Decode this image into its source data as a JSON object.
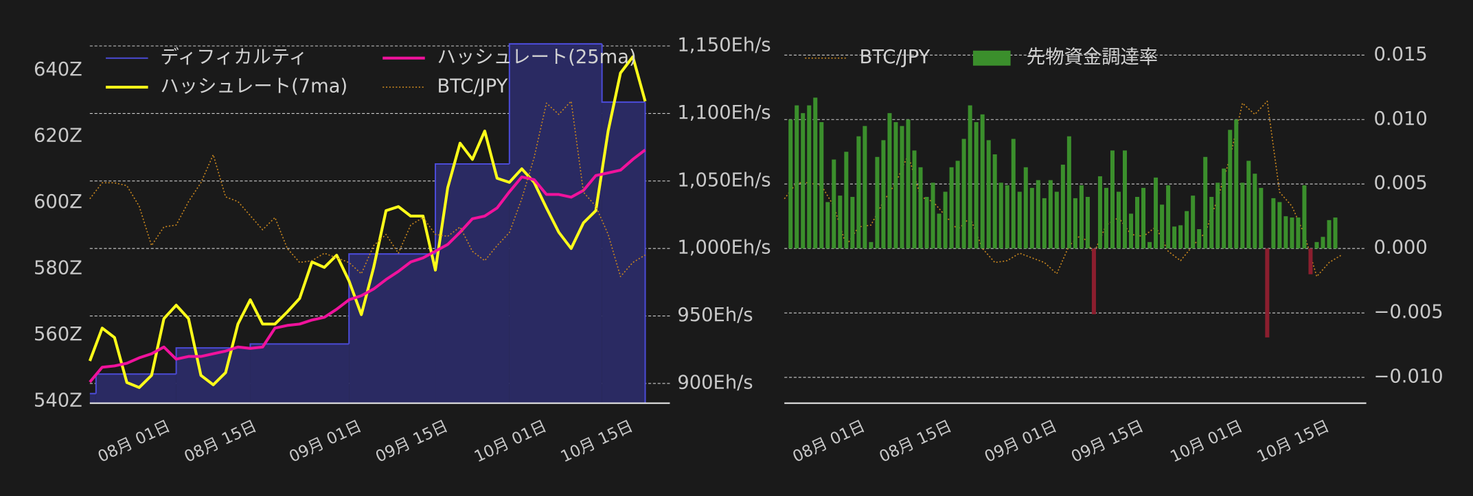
{
  "chart_data": [
    {
      "type": "line",
      "x": [
        "07-20",
        "07-22",
        "07-24",
        "07-26",
        "07-28",
        "07-30",
        "08-01",
        "08-03",
        "08-05",
        "08-07",
        "08-09",
        "08-11",
        "08-13",
        "08-15",
        "08-17",
        "08-19",
        "08-21",
        "08-23",
        "08-25",
        "08-27",
        "08-29",
        "08-31",
        "09-02",
        "09-04",
        "09-06",
        "09-08",
        "09-10",
        "09-12",
        "09-14",
        "09-16",
        "09-18",
        "09-20",
        "09-22",
        "09-24",
        "09-26",
        "09-28",
        "09-30",
        "10-02",
        "10-04",
        "10-06",
        "10-08",
        "10-10",
        "10-12",
        "10-14",
        "10-16",
        "10-18"
      ],
      "xlim": [
        "07-20",
        "10-22"
      ],
      "xticks": [
        {
          "value": "08-01",
          "label": "08月 01日"
        },
        {
          "value": "08-15",
          "label": "08月 15日"
        },
        {
          "value": "09-01",
          "label": "09月 01日"
        },
        {
          "value": "09-15",
          "label": "09月 15日"
        },
        {
          "value": "10-01",
          "label": "10月 01日"
        },
        {
          "value": "10-15",
          "label": "10月 15日"
        }
      ],
      "ylim": [
        539.4,
        648.5
      ],
      "yticks": [
        {
          "value": 540,
          "label": "540Z"
        },
        {
          "value": 560,
          "label": "560Z"
        },
        {
          "value": 580,
          "label": "580Z"
        },
        {
          "value": 600,
          "label": "600Z"
        },
        {
          "value": 620,
          "label": "620Z"
        },
        {
          "value": 640,
          "label": "640Z"
        }
      ],
      "ytick_side": "left",
      "y2lim": [
        885.4,
        1152.8
      ],
      "y2ticks": [
        {
          "value": 900,
          "label": "900Eh/s"
        },
        {
          "value": 950,
          "label": "950Eh/s"
        },
        {
          "value": 1000,
          "label": "1,000Eh/s"
        },
        {
          "value": 1050,
          "label": "1,050Eh/s"
        },
        {
          "value": 1100,
          "label": "1,100Eh/s"
        },
        {
          "value": 1150,
          "label": "1,150Eh/s"
        }
      ],
      "y2tick_side": "right",
      "y3lim": [
        7000000,
        11000000
      ],
      "grid": "y2",
      "legend": "upper left",
      "legend_columns": 2,
      "series": [
        {
          "name": "ディフィカルティ",
          "type": "step_area",
          "color": "#4b4bd6",
          "fill": "#2a2a62",
          "x": [
            "07-20",
            "07-21",
            "08-03",
            "08-15",
            "08-31",
            "09-14",
            "09-26",
            "10-11",
            "10-18"
          ],
          "values": [
            542.3,
            548.2,
            556.1,
            557.3,
            584.5,
            611.7,
            648.0,
            630.4,
            630.4
          ]
        },
        {
          "name": "ハッシュレート(7ma)",
          "type": "line",
          "axis": "y2",
          "color": "#ffff1a",
          "width": 3,
          "values": [
            916.7,
            941,
            934,
            900.7,
            897,
            906,
            948,
            958,
            948,
            906,
            899,
            908,
            944,
            962,
            944,
            944,
            953,
            963,
            990,
            986,
            995,
            976,
            951,
            986,
            1028,
            1031,
            1024,
            1024,
            984,
            1045,
            1078,
            1066,
            1087,
            1052,
            1049,
            1059,
            1049,
            1030,
            1012,
            1000,
            1019,
            1028,
            1087,
            1130,
            1142,
            1109
          ]
        },
        {
          "name": "ハッシュレート(25ma)",
          "type": "line",
          "axis": "y2",
          "color": "#f0129c",
          "width": 3,
          "values": [
            901,
            912,
            913,
            915,
            919,
            922,
            927,
            918,
            920,
            920,
            922,
            924,
            927,
            926,
            927,
            941,
            943,
            944,
            947,
            949,
            955,
            962,
            965,
            970,
            977,
            983,
            990,
            993,
            998,
            1003,
            1012,
            1022,
            1024,
            1030,
            1042,
            1053,
            1051,
            1040,
            1040,
            1038,
            1043,
            1054,
            1056,
            1058,
            1066,
            1073
          ]
        },
        {
          "name": "BTC/JPY",
          "type": "line",
          "axis": "y3",
          "color": "#c8861e",
          "width": 1.2,
          "dash": "dotted",
          "values": [
            9265000,
            9442000,
            9442000,
            9410000,
            9182000,
            8746000,
            8953000,
            8974000,
            9234000,
            9442000,
            9753000,
            9286000,
            9234000,
            9078000,
            8922000,
            9057000,
            8714000,
            8559000,
            8579000,
            8662000,
            8610000,
            8559000,
            8434000,
            8746000,
            8870000,
            8662000,
            8974000,
            9057000,
            8870000,
            8849000,
            8953000,
            8683000,
            8579000,
            8746000,
            8891000,
            9265000,
            9722000,
            10325000,
            10200000,
            10346000,
            9338000,
            9182000,
            8870000,
            8403000,
            8559000,
            8642000
          ]
        }
      ]
    },
    {
      "type": "bar",
      "x": [
        "07-20",
        "07-22",
        "07-24",
        "07-26",
        "07-28",
        "07-30",
        "08-01",
        "08-03",
        "08-05",
        "08-07",
        "08-09",
        "08-11",
        "08-13",
        "08-15",
        "08-17",
        "08-19",
        "08-21",
        "08-23",
        "08-25",
        "08-27",
        "08-29",
        "08-31",
        "09-02",
        "09-04",
        "09-06",
        "09-08",
        "09-10",
        "09-12",
        "09-14",
        "09-16",
        "09-18",
        "09-20",
        "09-22",
        "09-24",
        "09-26",
        "09-28",
        "09-30",
        "10-02",
        "10-04",
        "10-06",
        "10-08",
        "10-10",
        "10-12",
        "10-14",
        "10-16",
        "10-18"
      ],
      "xlim": [
        "07-20",
        "10-22"
      ],
      "xticks": [
        {
          "value": "08-01",
          "label": "08月 01日"
        },
        {
          "value": "08-15",
          "label": "08月 15日"
        },
        {
          "value": "09-01",
          "label": "09月 01日"
        },
        {
          "value": "09-15",
          "label": "09月 15日"
        },
        {
          "value": "10-01",
          "label": "10月 01日"
        },
        {
          "value": "10-15",
          "label": "10月 15日"
        }
      ],
      "ylim": [
        -0.012,
        0.016
      ],
      "yticks": [
        {
          "value": -0.01,
          "label": "−0.010"
        },
        {
          "value": -0.005,
          "label": "−0.005"
        },
        {
          "value": 0,
          "label": "0.000"
        },
        0.005,
        {
          "value": 0.01,
          "label": "0.010"
        },
        0.015
      ],
      "ytick_side": "right",
      "y3lim": [
        7000000,
        11000000
      ],
      "grid": "y",
      "legend": "upper left",
      "legend_columns": 2,
      "series": [
        {
          "name": "BTC/JPY",
          "type": "line",
          "axis": "y3",
          "color": "#c8861e",
          "width": 1.2,
          "dash": "dotted",
          "values": [
            9265000,
            9442000,
            9442000,
            9410000,
            9182000,
            8746000,
            8953000,
            8974000,
            9234000,
            9442000,
            9753000,
            9286000,
            9234000,
            9078000,
            8922000,
            9057000,
            8714000,
            8559000,
            8579000,
            8662000,
            8610000,
            8559000,
            8434000,
            8746000,
            8870000,
            8662000,
            8974000,
            9057000,
            8870000,
            8849000,
            8953000,
            8683000,
            8579000,
            8746000,
            8891000,
            9265000,
            9722000,
            10325000,
            10200000,
            10346000,
            9338000,
            9182000,
            8870000,
            8403000,
            8559000,
            8642000
          ]
        },
        {
          "name": "先物資金調達率",
          "type": "bar",
          "color": "#3b8f2c",
          "negative_color": "#8b1e2e",
          "x": [
            "07-21",
            "07-22",
            "07-23",
            "07-24",
            "07-25",
            "07-26",
            "07-27",
            "07-28",
            "07-29",
            "07-30",
            "07-31",
            "08-01",
            "08-02",
            "08-03",
            "08-04",
            "08-05",
            "08-06",
            "08-07",
            "08-08",
            "08-09",
            "08-10",
            "08-11",
            "08-12",
            "08-13",
            "08-14",
            "08-15",
            "08-16",
            "08-17",
            "08-18",
            "08-19",
            "08-20",
            "08-21",
            "08-22",
            "08-23",
            "08-24",
            "08-25",
            "08-26",
            "08-27",
            "08-28",
            "08-29",
            "08-30",
            "08-31",
            "09-01",
            "09-02",
            "09-03",
            "09-04",
            "09-05",
            "09-06",
            "09-07",
            "09-08",
            "09-09",
            "09-10",
            "09-11",
            "09-12",
            "09-13",
            "09-14",
            "09-15",
            "09-16",
            "09-17",
            "09-18",
            "09-19",
            "09-20",
            "09-21",
            "09-22",
            "09-23",
            "09-24",
            "09-25",
            "09-26",
            "09-27",
            "09-28",
            "09-29",
            "09-30",
            "10-01",
            "10-02",
            "10-03",
            "10-04",
            "10-05",
            "10-06",
            "10-07",
            "10-08",
            "10-09",
            "10-10",
            "10-11",
            "10-12",
            "10-13",
            "10-14",
            "10-15",
            "10-16",
            "10-17"
          ],
          "values": [
            0.01,
            0.0111,
            0.0105,
            0.0111,
            0.0117,
            0.0098,
            0.0036,
            0.0069,
            0.0041,
            0.0075,
            0.004,
            0.0087,
            0.0095,
            0.0005,
            0.0071,
            0.0084,
            0.0105,
            0.0098,
            0.0095,
            0.01,
            0.0076,
            0.0063,
            0.004,
            0.0051,
            0.0027,
            0.0044,
            0.0063,
            0.0068,
            0.0085,
            0.0111,
            0.0098,
            0.0104,
            0.0084,
            0.0073,
            0.0051,
            0.0049,
            0.0085,
            0.0044,
            0.0063,
            0.0047,
            0.0053,
            0.0039,
            0.0053,
            0.0044,
            0.0065,
            0.0087,
            0.0039,
            0.0049,
            0.004,
            -0.0051,
            0.0056,
            0.0047,
            0.0076,
            0.0044,
            0.0076,
            0.0027,
            0.004,
            0.0047,
            0.0005,
            0.0055,
            0.0034,
            0.0049,
            0.0017,
            0.0018,
            0.0029,
            0.0041,
            0.0015,
            0.0071,
            0.004,
            0.0051,
            0.0062,
            0.0092,
            0.01,
            0.0051,
            0.0068,
            0.0058,
            0.0047,
            -0.0069,
            0.0039,
            0.0036,
            0.0025,
            0.0024,
            0.0024,
            0.0049,
            -0.002,
            0.0005,
            0.0009,
            0.0022,
            0.0024
          ]
        }
      ]
    }
  ]
}
